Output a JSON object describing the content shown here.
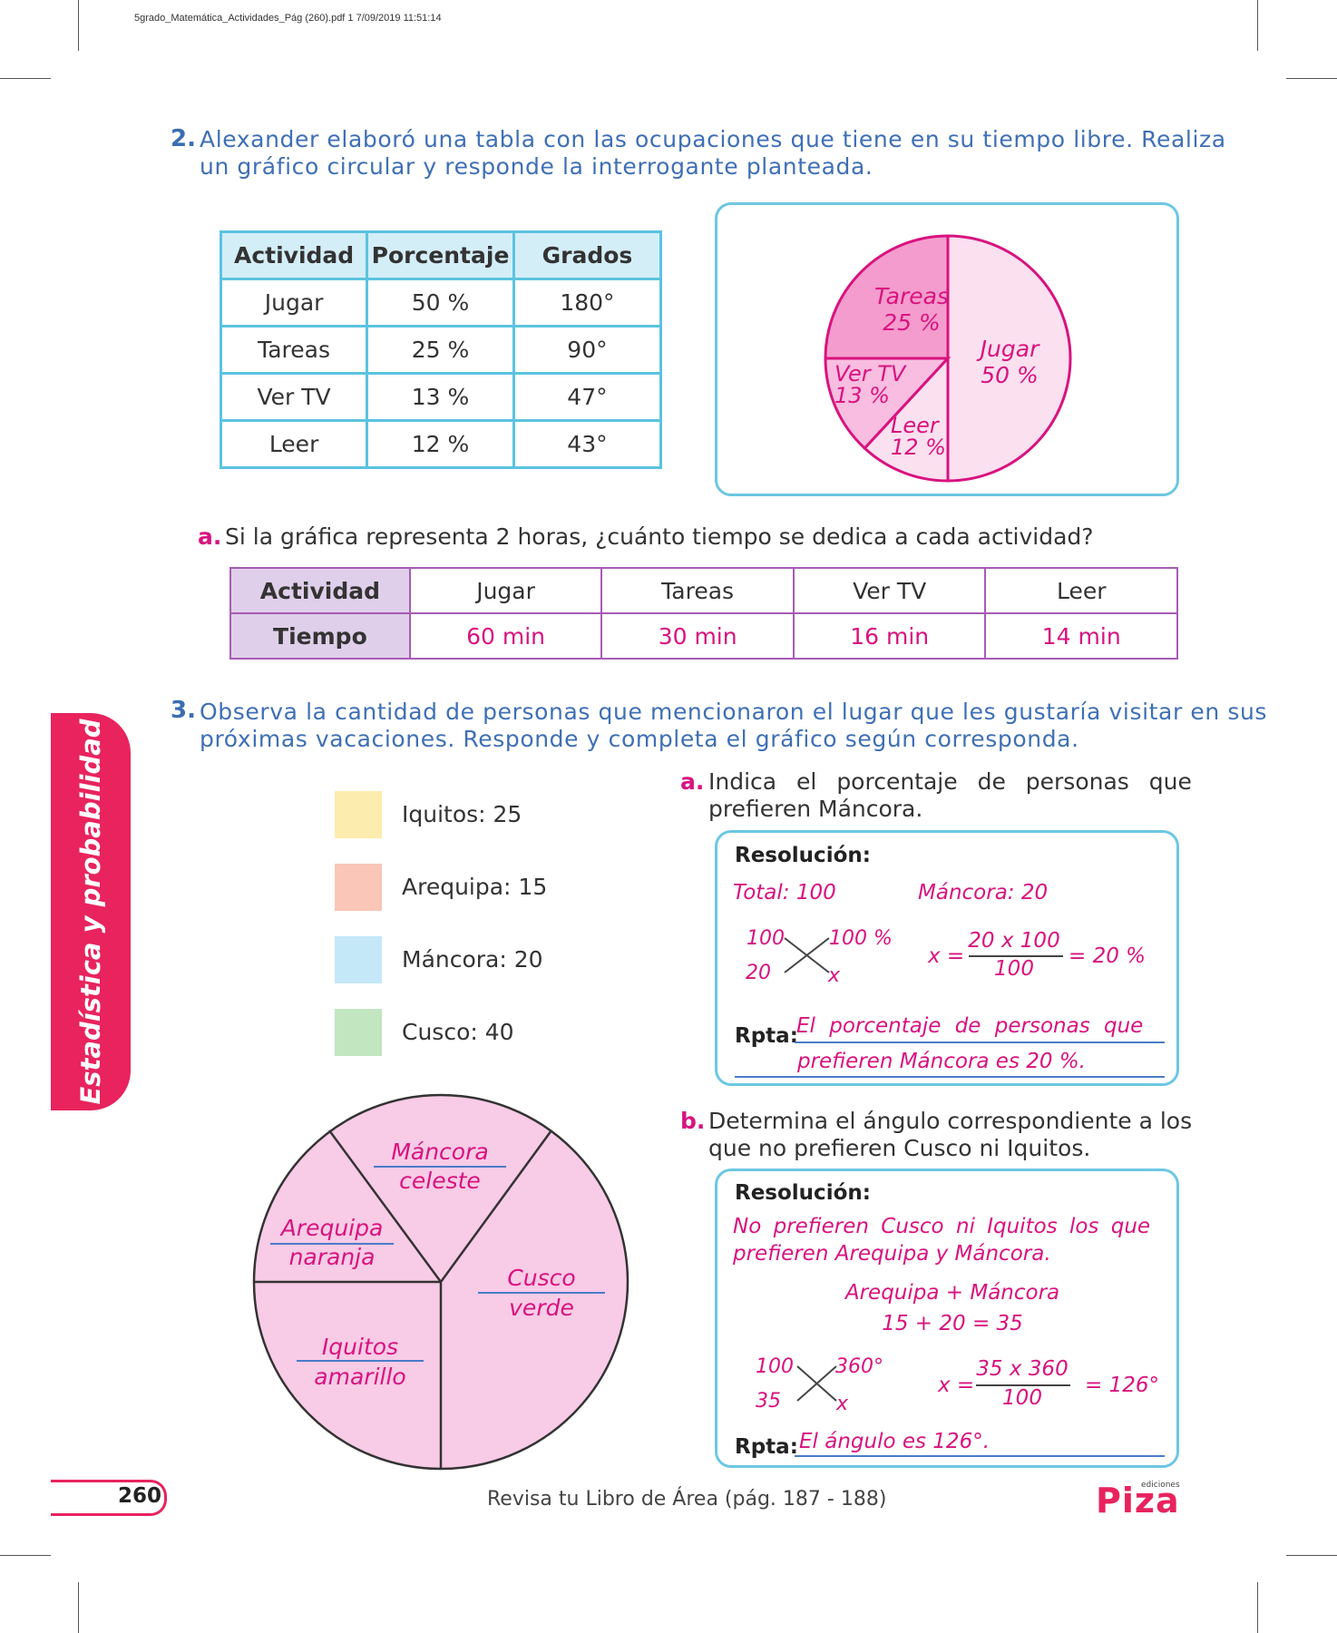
{
  "header": {
    "slug": "5grado_Matemática_Actividades_Pág (260).pdf   1   7/09/2019   11:51:14"
  },
  "sidebar": {
    "label": "Estadística y probabilidad"
  },
  "q2": {
    "number": "2.",
    "text_line1": "Alexander elaboró una tabla con las ocupaciones que tiene en su tiempo libre. Realiza",
    "text_line2": "un gráfico circular y responde la interrogante planteada.",
    "table": {
      "headers": [
        "Actividad",
        "Porcentaje",
        "Grados"
      ],
      "rows": [
        [
          "Jugar",
          "50 %",
          "180°"
        ],
        [
          "Tareas",
          "25 %",
          "90°"
        ],
        [
          "Ver TV",
          "13 %",
          "47°"
        ],
        [
          "Leer",
          "12 %",
          "43°"
        ]
      ]
    },
    "pie": {
      "slices": [
        {
          "name": "Jugar",
          "percent": "50 %",
          "degrees": 180,
          "color": "#fbe0f0"
        },
        {
          "name": "Tareas",
          "percent": "25 %",
          "degrees": 90,
          "color": "#f49ccd"
        },
        {
          "name": "Ver TV",
          "percent": "13 %",
          "degrees": 47,
          "color": "#f8bde0"
        },
        {
          "name": "Leer",
          "percent": "12 %",
          "degrees": 43,
          "color": "#fbe0f0"
        }
      ],
      "stroke": "#d8137f"
    },
    "a": {
      "letter": "a.",
      "question": "Si la gráfica representa 2 horas, ¿cuánto tiempo se dedica a cada actividad?",
      "table": {
        "row_header_1": "Actividad",
        "row_header_2": "Tiempo",
        "activities": [
          "Jugar",
          "Tareas",
          "Ver TV",
          "Leer"
        ],
        "times": [
          "60 min",
          "30 min",
          "16 min",
          "14 min"
        ]
      }
    }
  },
  "q3": {
    "number": "3.",
    "text_line1": "Observa la cantidad de personas que mencionaron el lugar que les gustaría visitar en sus",
    "text_line2": "próximas vacaciones. Responde y completa el gráfico según corresponda.",
    "legend": [
      {
        "label": "Iquitos: 25",
        "color": "#fcedae"
      },
      {
        "label": "Arequipa: 15",
        "color": "#f9c6b7"
      },
      {
        "label": "Máncora: 20",
        "color": "#c4e8f8"
      },
      {
        "label": "Cusco: 40",
        "color": "#c1e6c0"
      }
    ],
    "pie": {
      "fill": "#f8cbe6",
      "slices": [
        {
          "line1": "Máncora",
          "line2": "celeste"
        },
        {
          "line1": "Arequipa",
          "line2": "naranja"
        },
        {
          "line1": "Cusco",
          "line2": "verde"
        },
        {
          "line1": "Iquitos",
          "line2": "amarillo"
        }
      ]
    },
    "a": {
      "letter": "a.",
      "q_line1": "Indica el porcentaje de personas que",
      "q_line2": "prefieren Máncora.",
      "res_title": "Resolución:",
      "total": "Total: 100",
      "mancora": "Máncora: 20",
      "cross_tl": "100",
      "cross_tr": "100 %",
      "cross_bl": "20",
      "cross_br": "x",
      "eq_left": "x =",
      "eq_num": "20 x 100",
      "eq_den": "100",
      "eq_right": "= 20 %",
      "rpta_label": "Rpta:",
      "rpta_line1": "El porcentaje de personas que",
      "rpta_line2": "prefieren Máncora es 20 %."
    },
    "b": {
      "letter": "b.",
      "q_line1": "Determina el ángulo correspondiente a los",
      "q_line2": "que no prefieren Cusco ni Iquitos.",
      "res_title": "Resolución:",
      "text_line1": "No prefieren Cusco ni Iquitos los que",
      "text_line2": "prefieren Arequipa y Máncora.",
      "sum_line1": "Arequipa + Máncora",
      "sum_line2": "15 + 20 = 35",
      "cross_tl": "100",
      "cross_tr": "360°",
      "cross_bl": "35",
      "cross_br": "x",
      "eq_left": "x =",
      "eq_num": "35 x 360",
      "eq_den": "100",
      "eq_right": "= 126°",
      "rpta_label": "Rpta:",
      "rpta_text": "El ángulo es 126°."
    }
  },
  "footer": {
    "page_number": "260",
    "reference": "Revisa tu Libro de Área (pág. 187 - 188)",
    "logo_small": "ediciones",
    "logo": "Piza"
  }
}
